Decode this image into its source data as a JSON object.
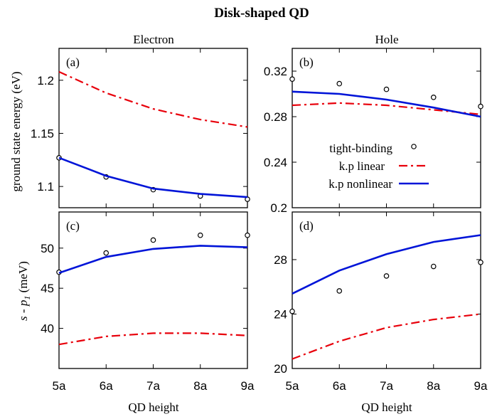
{
  "figure": {
    "title": "Disk-shaped QD",
    "columns": [
      "Electron",
      "Hole"
    ],
    "xlabel": "QD height",
    "ylabel_top": "ground state energy (eV)",
    "ylabel_bottom_parts": [
      "s",
      " - ",
      "p",
      "1",
      " (meV)"
    ],
    "ylabel_bottom": "s - p1 (meV)",
    "legend": {
      "tight_binding": "tight-binding",
      "kp_linear": "k.p linear",
      "kp_nonlinear": "k.p nonlinear"
    },
    "colors": {
      "kp_linear": "#e8000b",
      "kp_nonlinear": "#0014d8",
      "tight_binding": "#000000"
    }
  },
  "chart_data": [
    {
      "panel": "(a)",
      "type": "line",
      "column": "Electron",
      "row": "top",
      "categories": [
        "5a",
        "6a",
        "7a",
        "8a",
        "9a"
      ],
      "xlabel": "",
      "ylabel": "ground state energy (eV)",
      "ylim": [
        1.08,
        1.23
      ],
      "yticks": [
        1.1,
        1.15,
        1.2
      ],
      "ytick_labels": [
        "1.1",
        "1.15",
        "1.2"
      ],
      "series": [
        {
          "name": "tight-binding",
          "style": "points",
          "values": [
            1.127,
            1.109,
            1.097,
            1.091,
            1.088
          ]
        },
        {
          "name": "k.p linear",
          "style": "dashdot",
          "values": [
            1.208,
            1.188,
            1.173,
            1.163,
            1.156
          ]
        },
        {
          "name": "k.p nonlinear",
          "style": "solid",
          "values": [
            1.127,
            1.11,
            1.098,
            1.093,
            1.09
          ]
        }
      ]
    },
    {
      "panel": "(b)",
      "type": "line",
      "column": "Hole",
      "row": "top",
      "categories": [
        "5a",
        "6a",
        "7a",
        "8a",
        "9a"
      ],
      "xlabel": "",
      "ylabel": "",
      "ylim": [
        0.2,
        0.34
      ],
      "yticks": [
        0.2,
        0.24,
        0.28,
        0.32
      ],
      "ytick_labels": [
        "0.2",
        "0.24",
        "0.28",
        "0.32"
      ],
      "series": [
        {
          "name": "tight-binding",
          "style": "points",
          "values": [
            0.313,
            0.309,
            0.304,
            0.297,
            0.289
          ]
        },
        {
          "name": "k.p linear",
          "style": "dashdot",
          "values": [
            0.29,
            0.292,
            0.29,
            0.286,
            0.282
          ]
        },
        {
          "name": "k.p nonlinear",
          "style": "solid",
          "values": [
            0.302,
            0.3,
            0.295,
            0.288,
            0.28
          ]
        }
      ]
    },
    {
      "panel": "(c)",
      "type": "line",
      "column": "Electron",
      "row": "bottom",
      "categories": [
        "5a",
        "6a",
        "7a",
        "8a",
        "9a"
      ],
      "xlabel": "QD height",
      "ylabel": "s - p1 (meV)",
      "ylim": [
        35,
        54.5
      ],
      "yticks": [
        40,
        45,
        50
      ],
      "ytick_labels": [
        "40",
        "45",
        "50"
      ],
      "series": [
        {
          "name": "tight-binding",
          "style": "points",
          "values": [
            47.0,
            49.4,
            51.0,
            51.6,
            51.6
          ]
        },
        {
          "name": "k.p linear",
          "style": "dashdot",
          "values": [
            38.0,
            39.0,
            39.4,
            39.4,
            39.1
          ]
        },
        {
          "name": "k.p nonlinear",
          "style": "solid",
          "values": [
            46.9,
            48.9,
            49.9,
            50.3,
            50.1
          ]
        }
      ]
    },
    {
      "panel": "(d)",
      "type": "line",
      "column": "Hole",
      "row": "bottom",
      "categories": [
        "5a",
        "6a",
        "7a",
        "8a",
        "9a"
      ],
      "xlabel": "QD height",
      "ylabel": "",
      "ylim": [
        20,
        31.5
      ],
      "yticks": [
        20,
        24,
        28
      ],
      "ytick_labels": [
        "20",
        "24",
        "28"
      ],
      "series": [
        {
          "name": "tight-binding",
          "style": "points",
          "values": [
            24.2,
            25.7,
            26.8,
            27.5,
            27.8
          ]
        },
        {
          "name": "k.p linear",
          "style": "dashdot",
          "values": [
            20.7,
            22.0,
            23.0,
            23.6,
            24.0
          ]
        },
        {
          "name": "k.p nonlinear",
          "style": "solid",
          "values": [
            25.5,
            27.2,
            28.4,
            29.3,
            29.8
          ]
        }
      ]
    }
  ]
}
